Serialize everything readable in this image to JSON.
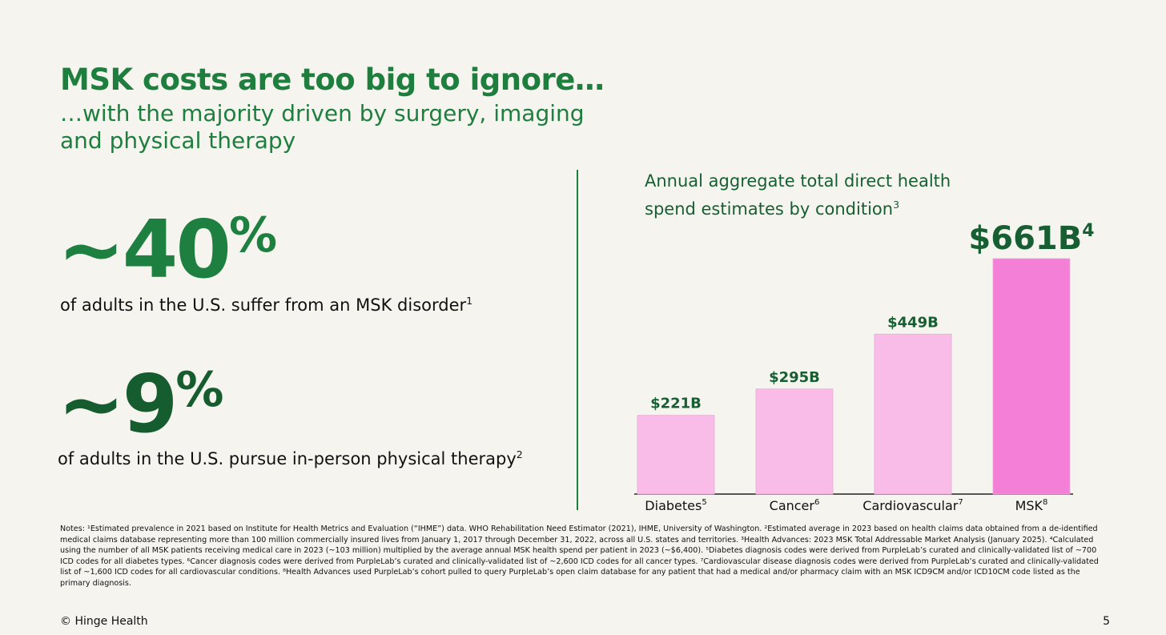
{
  "slide": {
    "title": "MSK costs are too big to ignore…",
    "subtitle": "…with the majority driven by surgery, imaging and physical therapy"
  },
  "stats": [
    {
      "prefix": "~40",
      "unit": "%",
      "text": "of adults in the U.S. suffer from an MSK disorder",
      "footnote": "1"
    },
    {
      "prefix": "~9",
      "unit": "%",
      "text": "of adults in the U.S. pursue in-person physical therapy",
      "footnote": "2"
    }
  ],
  "chart_data": {
    "type": "bar",
    "title": "Annual aggregate total direct health spend estimates by condition",
    "title_footnote": "3",
    "categories": [
      "Diabetes",
      "Cancer",
      "Cardiovascular",
      "MSK"
    ],
    "category_footnotes": [
      "5",
      "6",
      "7",
      "8"
    ],
    "values": [
      221,
      295,
      449,
      661
    ],
    "value_labels": [
      "$221B",
      "$295B",
      "$449B",
      "$661B"
    ],
    "value_label_footnotes": [
      "",
      "",
      "",
      "4"
    ],
    "unit": "$B",
    "ylim": [
      0,
      661
    ],
    "grid": false,
    "colors": [
      "#f9bce8",
      "#f9bce8",
      "#f9bce8",
      "#f47fd6"
    ],
    "highlight_category": "MSK"
  },
  "footnotes": "Notes: ¹Estimated prevalence in 2021 based on Institute for Health Metrics and Evaluation (“IHME”) data. WHO Rehabilitation Need Estimator (2021), IHME, University of Washington. ²Estimated average in 2023 based on health claims data obtained from a de-identified medical claims database representing more than 100 million commercially insured lives from January 1, 2017 through December 31, 2022, across all U.S. states and territories. ³Health Advances: 2023 MSK Total Addressable Market Analysis (January 2025). ⁴Calculated using the number of all MSK patients receiving medical care in 2023 (~103 million) multiplied by the average annual MSK health spend per patient in 2023 (~$6,400). ⁵Diabetes diagnosis codes were derived from PurpleLab’s curated and clinically-validated list of ~700 ICD codes for all diabetes types. ⁶Cancer diagnosis codes were derived from PurpleLab’s curated and clinically-validated list of ~2,600 ICD codes for all cancer types. ⁷Cardiovascular disease diagnosis codes were derived from PurpleLab’s curated and clinically-validated list of ~1,600 ICD codes for all cardiovascular conditions. ⁸Health Advances used PurpleLab’s cohort pulled to query PurpleLab’s open claim database for any patient that had a medical and/or pharmacy claim with an MSK ICD9CM and/or ICD10CM code listed as the primary diagnosis.",
  "footer": {
    "copyright": "© Hinge Health",
    "page_number": "5"
  }
}
